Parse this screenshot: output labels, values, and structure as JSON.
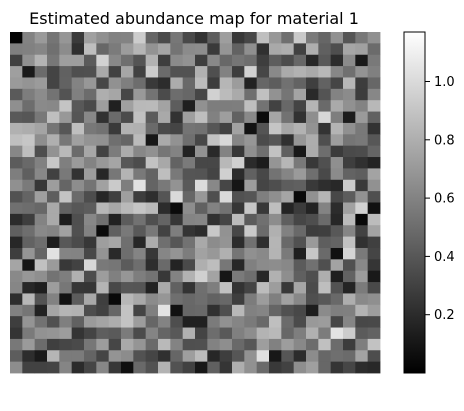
{
  "chart_data": {
    "type": "heatmap",
    "title": "Estimated abundance map for material 1",
    "rows": 30,
    "cols": 30,
    "colormap": "gray",
    "vmin": 0.0,
    "vmax": 1.17,
    "colorbar": {
      "tick_values": [
        0.2,
        0.4,
        0.6,
        0.8,
        1.0
      ],
      "tick_labels": [
        "0.2",
        "0.4",
        "0.6",
        "0.8",
        "1.0"
      ]
    },
    "values_note": "",
    "seed": 12345
  }
}
